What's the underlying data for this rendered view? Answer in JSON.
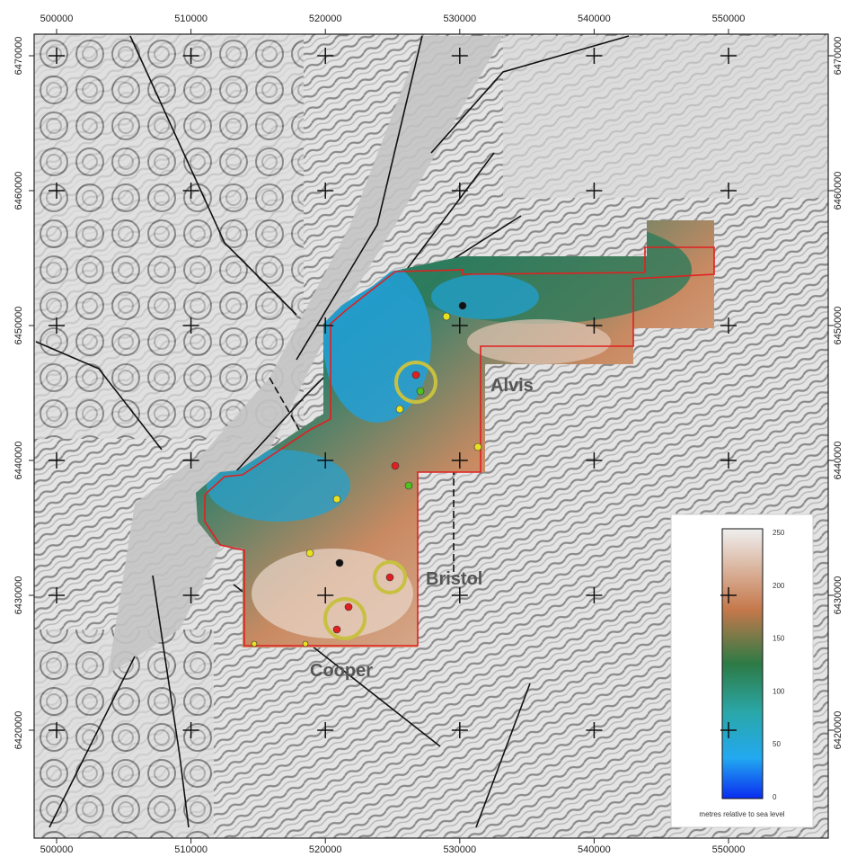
{
  "map": {
    "x_ticks": [
      500000,
      510000,
      520000,
      530000,
      540000,
      550000
    ],
    "y_ticks": [
      6470000,
      6460000,
      6450000,
      6440000,
      6430000,
      6420000
    ],
    "places": [
      {
        "label": "Alvis"
      },
      {
        "label": "Bristol"
      },
      {
        "label": "Cooper"
      }
    ],
    "legend": {
      "ticks": [
        250,
        200,
        150,
        100,
        50,
        0
      ],
      "caption": "metres relative to sea level"
    }
  }
}
